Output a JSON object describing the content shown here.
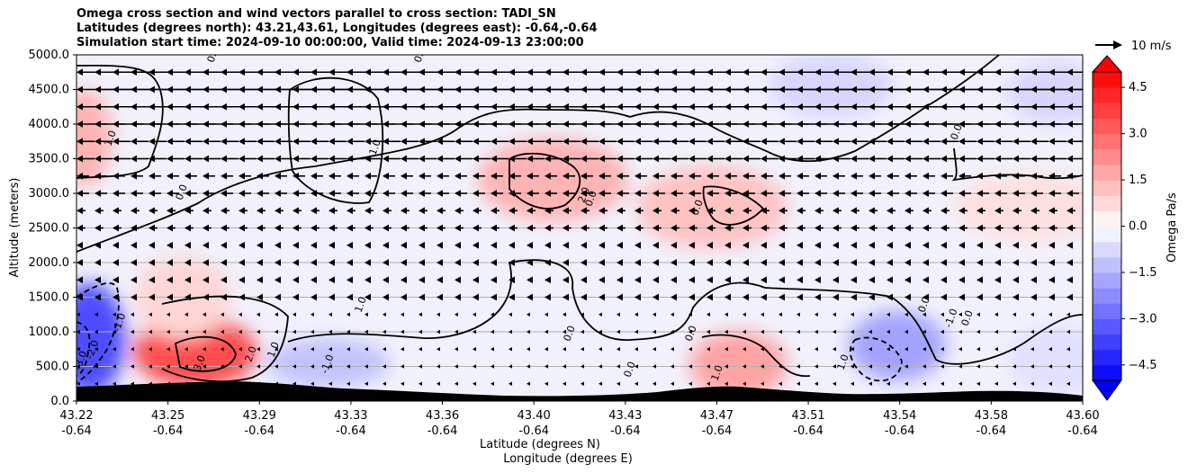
{
  "chart_data": {
    "type": "heatmap",
    "title_lines": [
      "Omega cross section and wind vectors parallel to cross section: TADI_SN",
      "Latitudes (degrees north): 43.21,43.61, Longitudes (degrees east): -0.64,-0.64",
      "Simulation start time: 2024-09-10 00:00:00, Valid time: 2024-09-13 23:00:00"
    ],
    "ylabel": "Altitude (meters)",
    "xlabel_lines": [
      "Latitude (degrees N)",
      "Longitude (degrees E)"
    ],
    "ylim": [
      0,
      5000
    ],
    "yticks": [
      "0.0",
      "500.0",
      "1000.0",
      "1500.0",
      "2000.0",
      "2500.0",
      "3000.0",
      "3500.0",
      "4000.0",
      "4500.0",
      "5000.0"
    ],
    "yticks_values": [
      0,
      500,
      1000,
      1500,
      2000,
      2500,
      3000,
      3500,
      4000,
      4500,
      5000
    ],
    "xticks": [
      {
        "lat": "43.22",
        "lon": "-0.64"
      },
      {
        "lat": "43.25",
        "lon": "-0.64"
      },
      {
        "lat": "43.29",
        "lon": "-0.64"
      },
      {
        "lat": "43.33",
        "lon": "-0.64"
      },
      {
        "lat": "43.36",
        "lon": "-0.64"
      },
      {
        "lat": "43.40",
        "lon": "-0.64"
      },
      {
        "lat": "43.43",
        "lon": "-0.64"
      },
      {
        "lat": "43.47",
        "lon": "-0.64"
      },
      {
        "lat": "43.51",
        "lon": "-0.64"
      },
      {
        "lat": "43.54",
        "lon": "-0.64"
      },
      {
        "lat": "43.58",
        "lon": "-0.64"
      },
      {
        "lat": "43.60",
        "lon": "-0.64"
      }
    ],
    "grid": "horizontal",
    "colorbar": {
      "label": "Omega Pa/s",
      "range": [
        -5,
        5
      ],
      "ticks": [
        "−4.5",
        "−3.0",
        "−1.5",
        "0.0",
        "1.5",
        "3.0",
        "4.5"
      ],
      "tick_values": [
        -4.5,
        -3.0,
        -1.5,
        0.0,
        1.5,
        3.0,
        4.5
      ],
      "colormap": "bwr",
      "extend": "both"
    },
    "quiver_key": "10 m/s",
    "contour_labels": [
      "1.0",
      "0.0",
      "1.0",
      "2.0",
      "0.0",
      "-1.0",
      "-2.0",
      "-3.0",
      "3.0",
      "2.0",
      "1.0",
      "1.0",
      "-1.0",
      "0.0",
      "0.0",
      "0.0",
      "1.0",
      "0.0",
      "1.0",
      "-1.0",
      "0.0",
      "0.0",
      "0.0",
      "0.0",
      "0.0"
    ],
    "positive_regions": [
      {
        "x": [
          43.22,
          43.225
        ],
        "z": [
          3200,
          4400
        ],
        "omega": 1.5
      },
      {
        "x": [
          43.38,
          43.42
        ],
        "z": [
          2700,
          3700
        ],
        "omega": 1.5
      },
      {
        "x": [
          43.44,
          43.48
        ],
        "z": [
          2300,
          3300
        ],
        "omega": 1.2
      },
      {
        "x": [
          43.25,
          43.28
        ],
        "z": [
          300,
          1100
        ],
        "omega": 3.5
      },
      {
        "x": [
          43.46,
          43.48
        ],
        "z": [
          150,
          900
        ],
        "omega": 1.8
      },
      {
        "x": [
          43.25,
          43.27
        ],
        "z": [
          1000,
          2000
        ],
        "omega": 0.8
      },
      {
        "x": [
          43.56,
          43.6
        ],
        "z": [
          2400,
          3200
        ],
        "omega": 0.6
      }
    ],
    "negative_regions": [
      {
        "x": [
          43.22,
          43.23
        ],
        "z": [
          200,
          1600
        ],
        "omega": -3.5
      },
      {
        "x": [
          43.52,
          43.54
        ],
        "z": [
          400,
          1200
        ],
        "omega": -1.8
      },
      {
        "x": [
          43.3,
          43.33
        ],
        "z": [
          300,
          800
        ],
        "omega": -1.2
      },
      {
        "x": [
          43.49,
          43.52
        ],
        "z": [
          4200,
          4900
        ],
        "omega": -0.8
      },
      {
        "x": [
          43.58,
          43.6
        ],
        "z": [
          4100,
          4800
        ],
        "omega": -0.8
      },
      {
        "x": [
          43.58,
          43.6
        ],
        "z": [
          200,
          1000
        ],
        "omega": -0.6
      }
    ],
    "wind": "vectors toward south (leftward), strongest ~10 m/s above 4000 m, weakening to near calm below 2000 m",
    "terrain": "black filled terrain along the bottom, peaks near 43.27 and 43.47"
  }
}
